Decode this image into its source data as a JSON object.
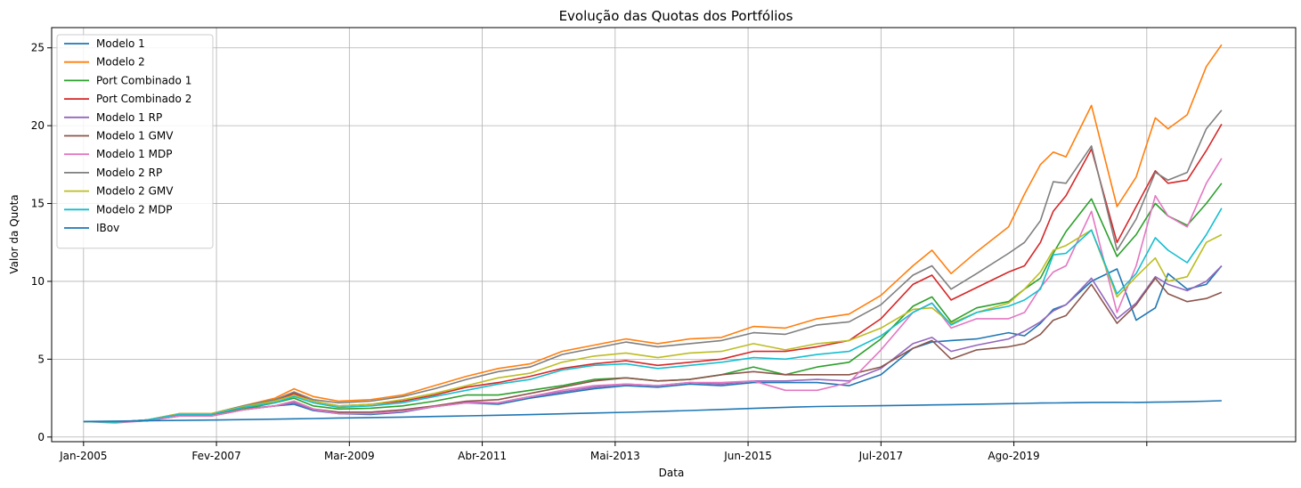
{
  "chart_data": {
    "type": "line",
    "title": "Evolução das Quotas dos Portfólios",
    "xlabel": "Data",
    "ylabel": "Valor da Quota",
    "x_ticks": [
      "Jan-2005",
      "Fev-2007",
      "Mar-2009",
      "Abr-2011",
      "Mai-2013",
      "Jun-2015",
      "Jul-2017",
      "Ago-2019"
    ],
    "y_ticks": [
      0,
      5,
      10,
      15,
      20,
      25
    ],
    "xlim": [
      2004.5,
      2024.0
    ],
    "ylim": [
      -0.3,
      26.3
    ],
    "grid": true,
    "legend_position": "upper left",
    "x": [
      2005.0,
      2005.5,
      2006.0,
      2006.5,
      2007.0,
      2007.5,
      2008.0,
      2008.3,
      2008.6,
      2009.0,
      2009.5,
      2010.0,
      2010.5,
      2011.0,
      2011.5,
      2012.0,
      2012.5,
      2013.0,
      2013.5,
      2014.0,
      2014.5,
      2015.0,
      2015.5,
      2016.0,
      2016.5,
      2017.0,
      2017.5,
      2018.0,
      2018.3,
      2018.6,
      2019.0,
      2019.5,
      2019.75,
      2020.0,
      2020.2,
      2020.4,
      2020.8,
      2021.2,
      2021.5,
      2021.8,
      2022.0,
      2022.3,
      2022.6,
      2022.84
    ],
    "series": [
      {
        "name": "Modelo 1",
        "color": "#1f77b4",
        "values": [
          1.0,
          0.95,
          1.05,
          1.4,
          1.4,
          1.8,
          2.0,
          2.1,
          1.7,
          1.5,
          1.45,
          1.6,
          1.95,
          2.2,
          2.1,
          2.5,
          2.8,
          3.1,
          3.3,
          3.2,
          3.4,
          3.3,
          3.5,
          3.5,
          3.5,
          3.3,
          4.0,
          5.7,
          6.1,
          6.2,
          6.3,
          6.7,
          6.5,
          7.3,
          8.2,
          8.5,
          10.0,
          10.8,
          7.5,
          8.3,
          10.5,
          9.5,
          9.8,
          11.0
        ]
      },
      {
        "name": "Modelo 2",
        "color": "#ff7f0e",
        "values": [
          1.0,
          0.95,
          1.1,
          1.5,
          1.5,
          2.0,
          2.5,
          3.1,
          2.6,
          2.3,
          2.4,
          2.7,
          3.3,
          3.9,
          4.4,
          4.7,
          5.5,
          5.9,
          6.3,
          6.0,
          6.3,
          6.4,
          7.1,
          7.0,
          7.6,
          7.9,
          9.1,
          11.0,
          12.0,
          10.5,
          11.9,
          13.5,
          15.6,
          17.5,
          18.3,
          18.0,
          21.3,
          14.8,
          16.7,
          20.5,
          19.8,
          20.7,
          23.8,
          25.2
        ]
      },
      {
        "name": "Port Combinado 1",
        "color": "#2ca02c",
        "values": [
          1.0,
          0.95,
          1.1,
          1.4,
          1.4,
          1.8,
          2.2,
          2.5,
          2.0,
          1.8,
          1.85,
          2.0,
          2.3,
          2.7,
          2.7,
          3.0,
          3.3,
          3.7,
          3.8,
          3.6,
          3.7,
          4.0,
          4.5,
          4.0,
          4.5,
          4.8,
          6.3,
          8.4,
          9.0,
          7.4,
          8.3,
          8.7,
          9.5,
          10.2,
          11.8,
          13.2,
          15.3,
          11.6,
          13.0,
          15.0,
          14.2,
          13.6,
          15.0,
          16.3
        ]
      },
      {
        "name": "Port Combinado 2",
        "color": "#d62728",
        "values": [
          1.0,
          0.95,
          1.1,
          1.45,
          1.45,
          1.9,
          2.3,
          2.8,
          2.3,
          2.0,
          2.1,
          2.3,
          2.7,
          3.2,
          3.5,
          3.9,
          4.4,
          4.7,
          4.9,
          4.6,
          4.8,
          5.0,
          5.5,
          5.5,
          5.8,
          6.2,
          7.6,
          9.8,
          10.4,
          8.8,
          9.6,
          10.6,
          11.0,
          12.5,
          14.5,
          15.5,
          18.5,
          12.5,
          14.8,
          17.1,
          16.3,
          16.5,
          18.4,
          20.1
        ]
      },
      {
        "name": "Modelo 1 RP",
        "color": "#9467bd",
        "values": [
          1.0,
          0.95,
          1.05,
          1.35,
          1.35,
          1.75,
          2.0,
          2.2,
          1.75,
          1.5,
          1.5,
          1.65,
          1.95,
          2.25,
          2.2,
          2.6,
          2.9,
          3.2,
          3.4,
          3.3,
          3.5,
          3.4,
          3.6,
          3.6,
          3.7,
          3.6,
          4.4,
          6.0,
          6.4,
          5.5,
          5.9,
          6.3,
          6.8,
          7.4,
          8.1,
          8.5,
          10.2,
          7.6,
          8.6,
          10.3,
          9.8,
          9.4,
          10.0,
          11.0
        ]
      },
      {
        "name": "Modelo 1 GMV",
        "color": "#8c564b",
        "values": [
          1.0,
          0.95,
          1.05,
          1.35,
          1.35,
          1.75,
          2.0,
          2.3,
          1.8,
          1.6,
          1.6,
          1.75,
          2.0,
          2.3,
          2.4,
          2.8,
          3.2,
          3.6,
          3.8,
          3.6,
          3.7,
          4.0,
          4.2,
          4.0,
          4.0,
          4.0,
          4.5,
          5.7,
          6.2,
          5.0,
          5.6,
          5.8,
          6.0,
          6.6,
          7.5,
          7.8,
          9.8,
          7.3,
          8.5,
          10.2,
          9.2,
          8.7,
          8.9,
          9.3
        ]
      },
      {
        "name": "Modelo 1 MDP",
        "color": "#e377c2",
        "values": [
          1.0,
          0.9,
          1.05,
          1.35,
          1.35,
          1.75,
          2.0,
          2.3,
          1.8,
          1.5,
          1.5,
          1.65,
          1.95,
          2.2,
          2.2,
          2.6,
          3.0,
          3.3,
          3.4,
          3.3,
          3.5,
          3.5,
          3.6,
          3.0,
          3.0,
          3.5,
          5.6,
          8.0,
          8.6,
          7.0,
          7.6,
          7.6,
          8.0,
          9.6,
          10.6,
          11.0,
          14.5,
          8.0,
          11.0,
          15.5,
          14.2,
          13.5,
          16.3,
          17.9
        ]
      },
      {
        "name": "Modelo 2 RP",
        "color": "#7f7f7f",
        "values": [
          1.0,
          0.95,
          1.1,
          1.5,
          1.5,
          2.0,
          2.4,
          2.9,
          2.4,
          2.2,
          2.3,
          2.6,
          3.1,
          3.7,
          4.2,
          4.5,
          5.3,
          5.7,
          6.1,
          5.8,
          6.0,
          6.2,
          6.7,
          6.6,
          7.2,
          7.4,
          8.5,
          10.4,
          11.0,
          9.5,
          10.5,
          11.8,
          12.5,
          13.9,
          16.4,
          16.3,
          18.7,
          12.0,
          14.0,
          17.0,
          16.5,
          17.0,
          19.8,
          21.0
        ]
      },
      {
        "name": "Modelo 2 GMV",
        "color": "#bcbd22",
        "values": [
          1.0,
          0.95,
          1.1,
          1.5,
          1.5,
          1.95,
          2.3,
          2.7,
          2.3,
          2.0,
          2.1,
          2.4,
          2.8,
          3.3,
          3.8,
          4.1,
          4.8,
          5.2,
          5.4,
          5.1,
          5.4,
          5.5,
          6.0,
          5.6,
          6.0,
          6.2,
          7.0,
          8.2,
          8.3,
          7.3,
          8.0,
          8.6,
          9.5,
          10.6,
          12.0,
          12.3,
          13.3,
          9.0,
          10.3,
          11.5,
          10.0,
          10.3,
          12.5,
          13.0
        ]
      },
      {
        "name": "Modelo 2 MDP",
        "color": "#17becf",
        "values": [
          1.0,
          0.95,
          1.1,
          1.45,
          1.45,
          1.9,
          2.2,
          2.6,
          2.2,
          1.9,
          2.0,
          2.2,
          2.6,
          3.0,
          3.4,
          3.7,
          4.3,
          4.6,
          4.7,
          4.4,
          4.6,
          4.8,
          5.1,
          5.0,
          5.3,
          5.5,
          6.5,
          8.0,
          8.6,
          7.2,
          8.0,
          8.4,
          8.8,
          9.5,
          11.7,
          11.8,
          13.3,
          9.2,
          10.5,
          12.8,
          12.0,
          11.2,
          13.0,
          14.7
        ]
      },
      {
        "name": "IBov",
        "color": "#1f77b4",
        "values": [
          1.0,
          1.02,
          1.05,
          1.07,
          1.09,
          1.12,
          1.15,
          1.17,
          1.19,
          1.22,
          1.25,
          1.28,
          1.32,
          1.36,
          1.4,
          1.44,
          1.49,
          1.54,
          1.59,
          1.64,
          1.7,
          1.77,
          1.84,
          1.91,
          1.96,
          1.99,
          2.01,
          2.04,
          2.06,
          2.08,
          2.11,
          2.14,
          2.16,
          2.18,
          2.19,
          2.2,
          2.22,
          2.23,
          2.22,
          2.24,
          2.25,
          2.27,
          2.3,
          2.33
        ]
      }
    ]
  }
}
